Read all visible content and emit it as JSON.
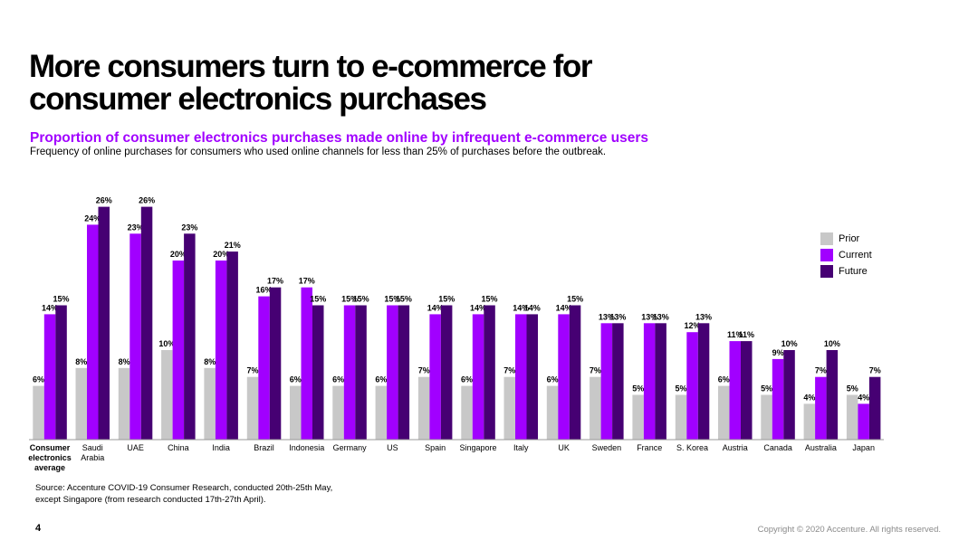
{
  "title_line1": "More consumers turn to e-commerce for",
  "title_line2": "consumer electronics purchases",
  "subtitle": "Proportion of consumer electronics purchases made online by infrequent e-commerce users",
  "description": "Frequency of online purchases for consumers who used online channels for less than 25% of purchases before the outbreak.",
  "source_line1": "Source: Accenture COVID-19 Consumer Research, conducted 20th-25th May,",
  "source_line2": "except Singapore (from research conducted 17th-27th April).",
  "page_number": "4",
  "copyright": "Copyright © 2020 Accenture. All rights reserved.",
  "colors": {
    "prior": "#c8c8c8",
    "current": "#a100ff",
    "future": "#460073",
    "accent": "#a100ff"
  },
  "chart_data": {
    "type": "bar",
    "title": "Proportion of consumer electronics purchases made online by infrequent e-commerce users",
    "xlabel": "",
    "ylabel": "",
    "ylim": [
      0,
      26
    ],
    "grid": false,
    "legend_position": "right",
    "categories": [
      [
        "Consumer",
        "electronics",
        "average"
      ],
      [
        "Saudi",
        "Arabia"
      ],
      [
        "UAE"
      ],
      [
        "China"
      ],
      [
        "India"
      ],
      [
        "Brazil"
      ],
      [
        "Indonesia"
      ],
      [
        "Germany"
      ],
      [
        "US"
      ],
      [
        "Spain"
      ],
      [
        "Singapore"
      ],
      [
        "Italy"
      ],
      [
        "UK"
      ],
      [
        "Sweden"
      ],
      [
        "France"
      ],
      [
        "S. Korea"
      ],
      [
        "Austria"
      ],
      [
        "Canada"
      ],
      [
        "Australia"
      ],
      [
        "Japan"
      ]
    ],
    "series": [
      {
        "name": "Prior",
        "color": "#c8c8c8",
        "values": [
          6,
          8,
          8,
          10,
          8,
          7,
          6,
          6,
          6,
          7,
          6,
          7,
          6,
          7,
          5,
          5,
          6,
          5,
          4,
          5
        ]
      },
      {
        "name": "Current",
        "color": "#a100ff",
        "values": [
          14,
          24,
          23,
          20,
          20,
          16,
          17,
          15,
          15,
          14,
          14,
          14,
          14,
          13,
          13,
          12,
          11,
          9,
          7,
          4
        ]
      },
      {
        "name": "Future",
        "color": "#460073",
        "values": [
          15,
          26,
          26,
          23,
          21,
          17,
          15,
          15,
          15,
          15,
          15,
          14,
          15,
          13,
          13,
          13,
          11,
          10,
          10,
          7
        ]
      }
    ]
  }
}
